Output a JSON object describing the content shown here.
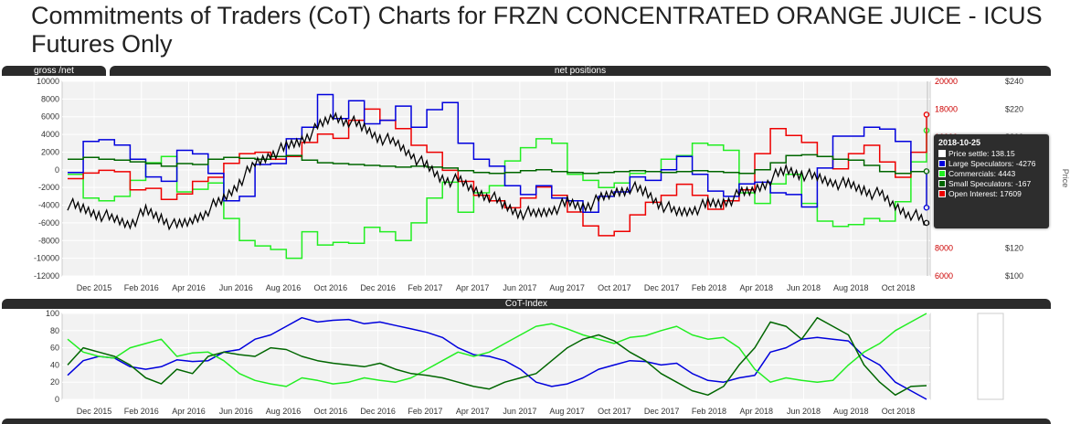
{
  "title": "Commitments of Traders (CoT) Charts for FRZN CONCENTRATED ORANGE JUICE - ICUS Futures Only",
  "section_bars": {
    "gross_net": "gross /net",
    "net_positions": "net positions",
    "cot_index": "CoT-Index"
  },
  "colors": {
    "price": "#000000",
    "large_speculators": "#0000dd",
    "commercials": "#22ee22",
    "small_speculators": "#006600",
    "open_interest": "#ee0000"
  },
  "tooltip": {
    "date": "2018-10-25",
    "rows": [
      {
        "label": "Price settle: 138.15",
        "color": "#ffffff"
      },
      {
        "label": "Large Speculators: -4276",
        "color": "#0000dd"
      },
      {
        "label": "Commercials: 4443",
        "color": "#22ee22"
      },
      {
        "label": "Small Speculators: -167",
        "color": "#006600"
      },
      {
        "label": "Open Interest: 17609",
        "color": "#ee0000"
      }
    ]
  },
  "chart_data": [
    {
      "type": "line",
      "x_tick_labels": [
        "Dec 2015",
        "Feb 2016",
        "Apr 2016",
        "Jun 2016",
        "Aug 2016",
        "Oct 2016",
        "Dec 2016",
        "Feb 2017",
        "Apr 2017",
        "Jun 2017",
        "Aug 2017",
        "Oct 2017",
        "Dec 2017",
        "Feb 2018",
        "Apr 2018",
        "Jun 2018",
        "Aug 2018",
        "Oct 2018"
      ],
      "x_range": [
        "2015-10-20",
        "2018-10-30"
      ],
      "y_left": {
        "range": [
          -12000,
          10000
        ],
        "ticks": [
          10000,
          8000,
          6000,
          4000,
          2000,
          0,
          -2000,
          -4000,
          -6000,
          -8000,
          -10000,
          -12000
        ]
      },
      "y_right_open_interest": {
        "range": [
          6000,
          20000
        ],
        "ticks": [
          20000,
          18000,
          16000,
          14000,
          12000,
          10000,
          8000,
          6000
        ]
      },
      "y_right_price": {
        "range": [
          100,
          240
        ],
        "ticks": [
          "$240",
          "$220",
          "$200",
          "$180",
          "$160",
          "$140",
          "$120",
          "$100"
        ],
        "title": "Price"
      },
      "grid": true,
      "series": [
        {
          "name": "Large Speculators",
          "axis": "left",
          "values": [
            -300,
            3200,
            3400,
            2800,
            1200,
            -800,
            -1300,
            2200,
            1800,
            -400,
            -3500,
            -3000,
            600,
            700,
            3500,
            4800,
            8500,
            5800,
            7800,
            5200,
            5600,
            7200,
            4800,
            6800,
            7600,
            3000,
            1200,
            400,
            -1800,
            -2800,
            -1800,
            -3200,
            -3500,
            -4800,
            -3000,
            -2500,
            -800,
            -1200,
            0,
            1500,
            -500,
            -2400,
            -3000,
            -1600,
            -1400,
            -2600,
            -2800,
            -4200,
            200,
            3800,
            3800,
            4800,
            4600,
            3200,
            -200,
            -4276
          ]
        },
        {
          "name": "Commercials",
          "axis": "left",
          "values": [
            -500,
            -3200,
            -3500,
            -3000,
            -1200,
            800,
            1500,
            -2500,
            -2200,
            -1500,
            -5500,
            -8000,
            -8600,
            -9000,
            -10000,
            -7000,
            -8500,
            -8200,
            -8300,
            -6500,
            -7000,
            -8000,
            -6000,
            -3200,
            -1400,
            -4800,
            -2600,
            -1800,
            1000,
            2500,
            3500,
            3000,
            -500,
            -1200,
            -2000,
            -1500,
            -400,
            -200,
            1200,
            1600,
            3000,
            2800,
            2200,
            -2600,
            -3800,
            -1600,
            -500,
            -3800,
            -5800,
            -6400,
            -6200,
            -5500,
            -5800,
            -3600,
            900,
            4443
          ]
        },
        {
          "name": "Small Speculators",
          "axis": "left",
          "values": [
            1200,
            1400,
            1200,
            1100,
            900,
            700,
            400,
            700,
            600,
            1200,
            1400,
            1300,
            1200,
            1500,
            1600,
            1100,
            800,
            700,
            600,
            500,
            400,
            300,
            400,
            300,
            200,
            -100,
            -300,
            -400,
            -300,
            -100,
            0,
            -200,
            -300,
            -400,
            -300,
            -200,
            -100,
            -200,
            -300,
            -200,
            -100,
            -200,
            -300,
            -400,
            0,
            800,
            1600,
            1700,
            1500,
            1200,
            1100,
            500,
            -200,
            -400,
            -200,
            -167
          ]
        },
        {
          "name": "Open Interest",
          "axis": "right_oi",
          "values": [
            13000,
            13400,
            13600,
            13500,
            12200,
            12300,
            11500,
            11900,
            12800,
            13100,
            14100,
            14800,
            14900,
            14400,
            14600,
            15600,
            16200,
            15900,
            17200,
            18000,
            17200,
            16600,
            15400,
            14900,
            13600,
            12800,
            11800,
            11400,
            10900,
            11600,
            12400,
            11800,
            10600,
            9600,
            8900,
            9200,
            10400,
            11300,
            11800,
            12600,
            11800,
            10800,
            11400,
            12200,
            14800,
            16600,
            16100,
            15600,
            14600,
            13700,
            14800,
            15400,
            14200,
            13100,
            14900,
            17609
          ]
        },
        {
          "name": "Price settle",
          "axis": "right_price",
          "values": [
            152,
            148,
            145,
            140,
            138,
            146,
            142,
            135,
            140,
            148,
            155,
            168,
            180,
            188,
            192,
            198,
            206,
            215,
            212,
            206,
            200,
            195,
            188,
            178,
            170,
            168,
            162,
            158,
            150,
            146,
            144,
            148,
            152,
            150,
            154,
            160,
            164,
            160,
            152,
            145,
            148,
            151,
            153,
            158,
            162,
            170,
            176,
            174,
            170,
            168,
            165,
            162,
            158,
            150,
            145,
            138.15
          ]
        }
      ]
    },
    {
      "type": "line",
      "title": "CoT-Index",
      "x_tick_labels": [
        "Dec 2015",
        "Feb 2016",
        "Apr 2016",
        "Jun 2016",
        "Aug 2016",
        "Oct 2016",
        "Dec 2016",
        "Feb 2017",
        "Apr 2017",
        "Jun 2017",
        "Aug 2017",
        "Oct 2017",
        "Dec 2017",
        "Feb 2018",
        "Apr 2018",
        "Jun 2018",
        "Aug 2018",
        "Oct 2018"
      ],
      "y_range": [
        0,
        100
      ],
      "y_ticks": [
        100,
        80,
        60,
        40,
        20,
        0
      ],
      "grid": true,
      "series": [
        {
          "name": "Large Speculators",
          "values": [
            28,
            45,
            50,
            48,
            38,
            35,
            38,
            46,
            44,
            45,
            55,
            58,
            70,
            75,
            85,
            95,
            90,
            92,
            93,
            88,
            90,
            86,
            82,
            78,
            72,
            60,
            52,
            50,
            45,
            35,
            20,
            15,
            18,
            25,
            35,
            40,
            45,
            44,
            40,
            42,
            30,
            22,
            20,
            25,
            28,
            55,
            60,
            70,
            72,
            70,
            68,
            50,
            40,
            20,
            10,
            0
          ]
        },
        {
          "name": "Commercials",
          "values": [
            70,
            55,
            50,
            48,
            60,
            65,
            70,
            50,
            54,
            55,
            45,
            30,
            22,
            18,
            15,
            25,
            22,
            18,
            20,
            25,
            22,
            20,
            25,
            35,
            45,
            55,
            50,
            55,
            65,
            75,
            85,
            88,
            82,
            75,
            70,
            65,
            72,
            74,
            80,
            85,
            75,
            70,
            72,
            60,
            35,
            20,
            25,
            22,
            20,
            22,
            40,
            55,
            65,
            80,
            90,
            100
          ]
        },
        {
          "name": "Small Speculators",
          "values": [
            40,
            60,
            55,
            50,
            40,
            25,
            18,
            35,
            30,
            50,
            55,
            52,
            50,
            60,
            58,
            50,
            45,
            42,
            40,
            38,
            42,
            35,
            30,
            28,
            25,
            20,
            15,
            12,
            20,
            25,
            30,
            45,
            60,
            70,
            75,
            68,
            55,
            45,
            30,
            20,
            10,
            5,
            15,
            40,
            60,
            90,
            85,
            70,
            95,
            85,
            75,
            40,
            20,
            5,
            15,
            16
          ]
        }
      ]
    }
  ]
}
